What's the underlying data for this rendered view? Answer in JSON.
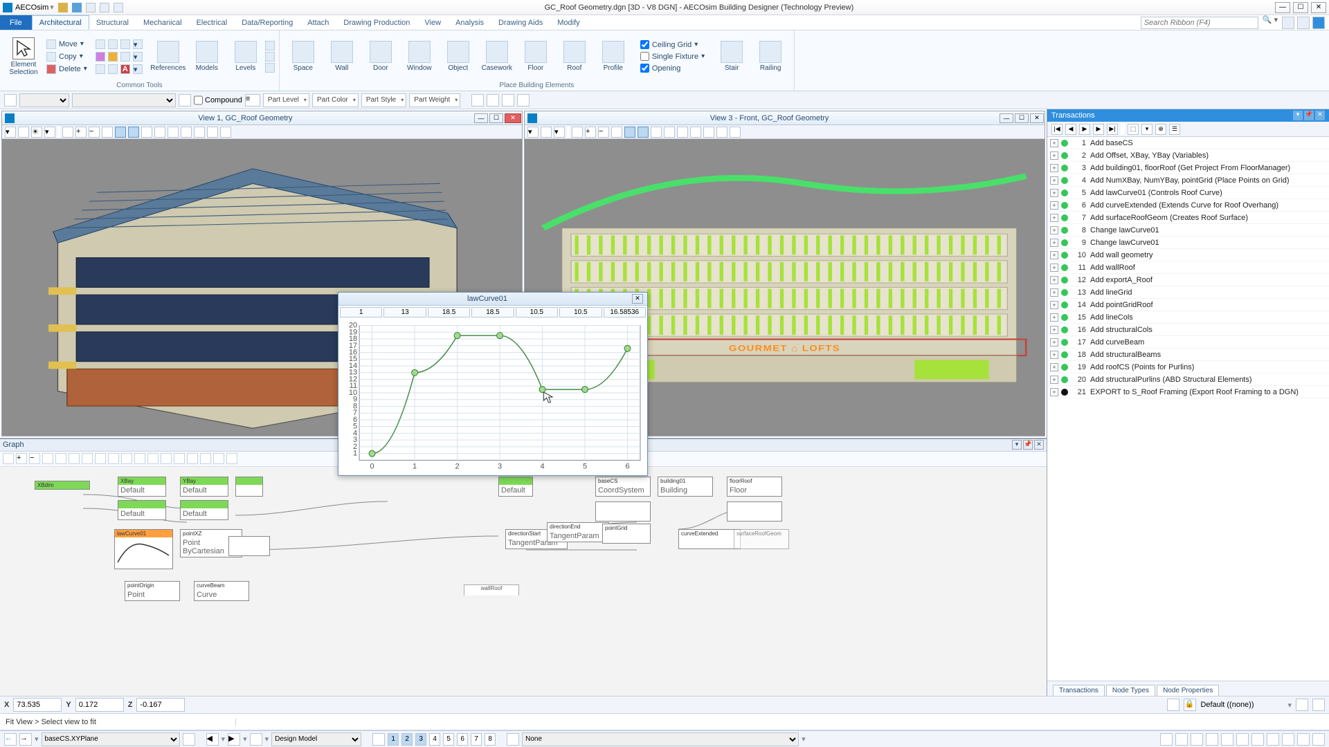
{
  "app": {
    "name": "AECOsim",
    "title": "GC_Roof Geometry.dgn [3D - V8 DGN] - AECOsim Building Designer (Technology Preview)"
  },
  "window_buttons": {
    "min": "—",
    "max": "☐",
    "close": "✕"
  },
  "menus": {
    "file": "File",
    "tabs": [
      "Architectural",
      "Structural",
      "Mechanical",
      "Electrical",
      "Data/Reporting",
      "Attach",
      "Drawing Production",
      "View",
      "Analysis",
      "Drawing Aids",
      "Modify"
    ],
    "active": "Architectural",
    "search_placeholder": "Search Ribbon (F4)"
  },
  "ribbon": {
    "group1": {
      "title": "Common Tools",
      "element_selection": "Element\nSelection",
      "move": "Move",
      "copy": "Copy",
      "delete": "Delete",
      "references": "References",
      "models": "Models",
      "levels": "Levels"
    },
    "group2": {
      "title": "Place Building Elements",
      "items": [
        "Space",
        "Wall",
        "Door",
        "Window",
        "Object",
        "Casework",
        "Floor",
        "Roof",
        "Profile"
      ],
      "checks": [
        "Ceiling Grid",
        "Single Fixture",
        "Opening"
      ],
      "stair": "Stair",
      "railing": "Railing"
    }
  },
  "attr_bar": {
    "compound": "Compound",
    "dd": [
      "Part Level",
      "Part Color",
      "Part Style",
      "Part Weight"
    ]
  },
  "views": {
    "v1": "View 1, GC_Roof Geometry",
    "v3": "View 3 - Front, GC_Roof Geometry",
    "sign": "GOURMET ⌂ LOFTS"
  },
  "graph": {
    "title": "Graph",
    "nodes": {
      "sliders": [
        "XBdim",
        "XBay",
        "YBay"
      ],
      "lawcurve": "lawCurve01",
      "pointxz": "pointXZ",
      "basecs": "baseCS",
      "building01": "building01",
      "floorroof": "floorRoof",
      "pointorigin": "pointOrigin",
      "curvebeam": "curveBeam",
      "directionstart": "directionStart",
      "directionend": "directionEnd",
      "pointgrid": "pointGrid",
      "curveextended": "curveExtended",
      "surfaceroof": "surfaceRoofGeom",
      "wallroof_tab": "wallRoof"
    }
  },
  "curve_dialog": {
    "title": "lawCurve01",
    "values": [
      "1",
      "13",
      "18.5",
      "18.5",
      "10.5",
      "10.5",
      "16.58536"
    ],
    "chart": {
      "type": "line-scatter",
      "xlim": [
        -0.3,
        6.3
      ],
      "ylim": [
        0,
        20
      ],
      "xticks": [
        0,
        1,
        2,
        3,
        4,
        5,
        6
      ],
      "yticks": [
        1,
        2,
        3,
        4,
        5,
        6,
        7,
        8,
        9,
        10,
        11,
        12,
        13,
        14,
        15,
        16,
        17,
        18,
        19,
        20
      ],
      "points": [
        [
          0,
          1
        ],
        [
          1,
          13
        ],
        [
          2,
          18.5
        ],
        [
          3,
          18.5
        ],
        [
          4,
          10.5
        ],
        [
          5,
          10.5
        ],
        [
          6,
          16.585
        ]
      ],
      "line_color": "#468c46",
      "point_fill": "#9edc8a",
      "point_stroke": "#3f7a3f",
      "grid_color": "#d6e2ee",
      "axis_color": "#7a8ca0",
      "bg": "#ffffff",
      "tick_fontsize": 8
    }
  },
  "transactions": {
    "title": "Transactions",
    "items": [
      {
        "n": 1,
        "label": "Add baseCS",
        "c": "#34c759"
      },
      {
        "n": 2,
        "label": "Add Offset, XBay, YBay (Variables)",
        "c": "#34c759"
      },
      {
        "n": 3,
        "label": "Add building01, floorRoof (Get Project From FloorManager)",
        "c": "#34c759"
      },
      {
        "n": 4,
        "label": "Add NumXBay, NumYBay, pointGrid (Place Points on Grid)",
        "c": "#34c759"
      },
      {
        "n": 5,
        "label": "Add lawCurve01 (Controls Roof Curve)",
        "c": "#34c759"
      },
      {
        "n": 6,
        "label": "Add curveExtended (Extends Curve for Roof Overhang)",
        "c": "#34c759"
      },
      {
        "n": 7,
        "label": "Add surfaceRoofGeom (Creates Roof Surface)",
        "c": "#34c759"
      },
      {
        "n": 8,
        "label": "Change lawCurve01",
        "c": "#34c759"
      },
      {
        "n": 9,
        "label": "Change lawCurve01",
        "c": "#34c759"
      },
      {
        "n": 10,
        "label": "Add wall geometry",
        "c": "#34c759"
      },
      {
        "n": 11,
        "label": "Add wallRoof",
        "c": "#34c759"
      },
      {
        "n": 12,
        "label": "Add exportA_Roof",
        "c": "#34c759"
      },
      {
        "n": 13,
        "label": "Add lineGrid",
        "c": "#34c759"
      },
      {
        "n": 14,
        "label": "Add pointGridRoof",
        "c": "#34c759"
      },
      {
        "n": 15,
        "label": "Add lineCols",
        "c": "#34c759"
      },
      {
        "n": 16,
        "label": "Add structuralCols",
        "c": "#34c759"
      },
      {
        "n": 17,
        "label": "Add curveBeam",
        "c": "#34c759"
      },
      {
        "n": 18,
        "label": "Add structuralBeams",
        "c": "#34c759"
      },
      {
        "n": 19,
        "label": "Add roofCS (Points for Purlins)",
        "c": "#34c759"
      },
      {
        "n": 20,
        "label": "Add structuralPurlins (ABD Structural Elements)",
        "c": "#34c759"
      },
      {
        "n": 21,
        "label": "EXPORT to S_Roof Framing (Export Roof Framing to a DGN)",
        "c": "#111111"
      }
    ],
    "tabs": [
      "Transactions",
      "Node Types",
      "Node Properties"
    ]
  },
  "coords": {
    "x": "73.535",
    "y": "0.172",
    "z": "-0.167",
    "lock_label": "Default ((none))"
  },
  "prompt": "Fit View > Select view to fit",
  "status": {
    "acs": "baseCS.XYPlane",
    "model": "Design Model",
    "views_on": [
      1,
      2,
      3
    ],
    "snap": "None"
  },
  "colors": {
    "accent": "#2f8fde",
    "ribbon_bg": "#f7fbff",
    "view_bg": "#8e8e8e",
    "roof_curve": "#49e06a",
    "facade_green": "#a6e23a",
    "facade_red": "#c1463c"
  }
}
